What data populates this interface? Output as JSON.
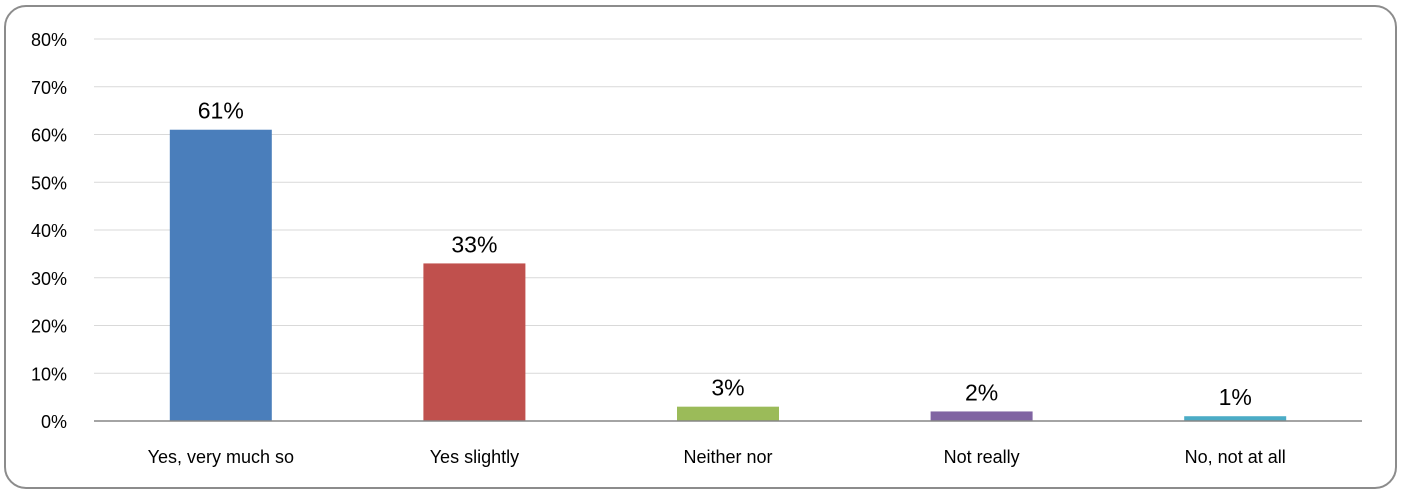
{
  "chart_data": {
    "type": "bar",
    "title": "",
    "xlabel": "",
    "ylabel": "",
    "categories": [
      "Yes, very much so",
      "Yes slightly",
      "Neither nor",
      "Not really",
      "No, not at all"
    ],
    "values": [
      61,
      33,
      3,
      2,
      1
    ],
    "data_labels": [
      "61%",
      "33%",
      "3%",
      "2%",
      "1%"
    ],
    "ylim": [
      0,
      80
    ],
    "yticks": [
      "0%",
      "10%",
      "20%",
      "30%",
      "40%",
      "50%",
      "60%",
      "70%",
      "80%"
    ],
    "grid": true,
    "legend": "none",
    "colors": [
      "#4a7ebb",
      "#c0504d",
      "#9bbb59",
      "#8064a2",
      "#4bacc6"
    ]
  }
}
